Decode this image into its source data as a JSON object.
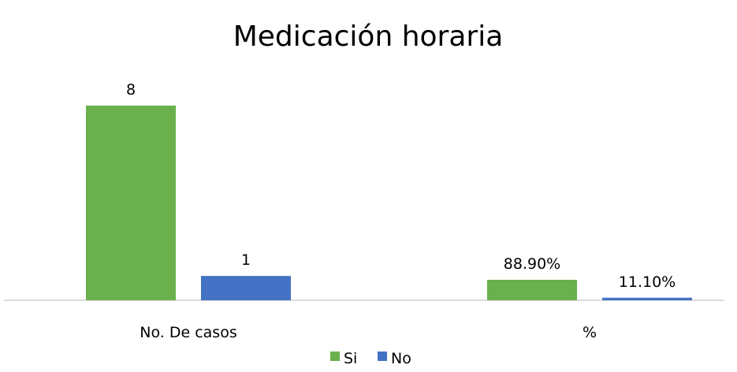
{
  "chart_data": {
    "type": "bar",
    "title": "Medicación horaria",
    "xlabel": "",
    "ylabel": "",
    "legend_position": "bottom",
    "grid": false,
    "groups": [
      {
        "category": "No. De casos",
        "series": [
          {
            "name": "Si",
            "value": 8,
            "label": "8"
          },
          {
            "name": "No",
            "value": 1,
            "label": "1"
          }
        ]
      },
      {
        "category": "%",
        "series": [
          {
            "name": "Si",
            "value": 0.889,
            "label": "88.90%"
          },
          {
            "name": "No",
            "value": 0.111,
            "label": "11.10%"
          }
        ]
      }
    ],
    "legend": [
      {
        "name": "Si",
        "color": "#6ab04c"
      },
      {
        "name": "No",
        "color": "#4472c4"
      }
    ],
    "colors": {
      "Si": "#6ab04c",
      "No": "#4472c4",
      "axis": "#d0d0d0"
    }
  }
}
